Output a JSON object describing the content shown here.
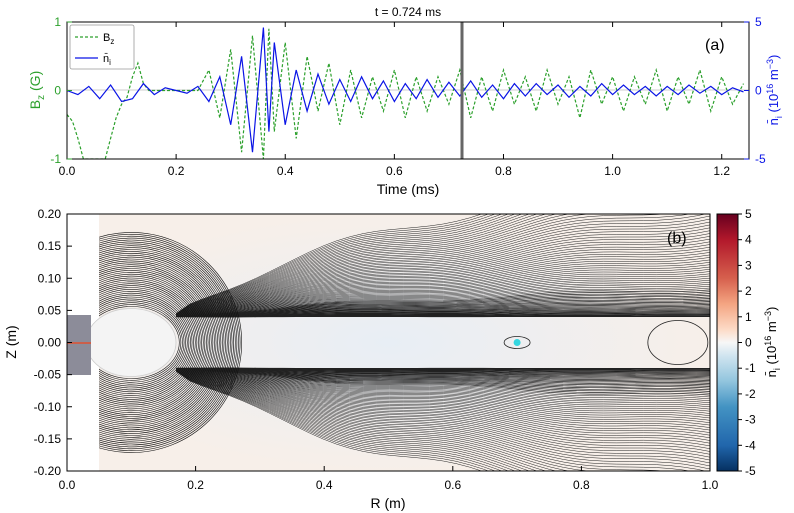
{
  "chart_data": [
    {
      "type": "line",
      "panel_label": "(a)",
      "title": "t = 0.724 ms",
      "xlabel": "Time (ms)",
      "xlim": [
        0.0,
        1.25
      ],
      "xticks": [
        "0.0",
        "0.2",
        "0.4",
        "0.6",
        "0.8",
        "1.0",
        "1.2"
      ],
      "ylabel_left": "B",
      "ylabel_left_sub": "z",
      "ylabel_left_unit": " (G)",
      "ylim_left": [
        -1,
        1
      ],
      "yticks_left": [
        "-1",
        "0",
        "1"
      ],
      "ylabel_right": "n̄",
      "ylabel_right_sub": "i",
      "ylabel_right_unit": " (10",
      "ylabel_right_exp": "16",
      "ylabel_right_unit2": " m",
      "ylabel_right_exp2": "−3",
      "ylabel_right_close": ")",
      "ylim_right": [
        -5,
        5
      ],
      "yticks_right": [
        "-5",
        "0",
        "5"
      ],
      "marker_time": 0.724,
      "series": [
        {
          "name": "B",
          "name_sub": "z",
          "color": "#2ca02c",
          "style": "dashed",
          "axis": "left",
          "x": [
            0.0,
            0.01,
            0.02,
            0.03,
            0.04,
            0.05,
            0.06,
            0.07,
            0.08,
            0.09,
            0.1,
            0.11,
            0.12,
            0.13,
            0.14,
            0.15,
            0.16,
            0.18,
            0.2,
            0.22,
            0.24,
            0.26,
            0.28,
            0.3,
            0.32,
            0.34,
            0.36,
            0.37,
            0.38,
            0.4,
            0.42,
            0.44,
            0.46,
            0.48,
            0.5,
            0.52,
            0.54,
            0.56,
            0.58,
            0.6,
            0.62,
            0.64,
            0.66,
            0.68,
            0.7,
            0.72,
            0.74,
            0.76,
            0.78,
            0.8,
            0.82,
            0.84,
            0.86,
            0.88,
            0.9,
            0.92,
            0.94,
            0.96,
            0.98,
            1.0,
            1.02,
            1.04,
            1.06,
            1.08,
            1.1,
            1.12,
            1.14,
            1.16,
            1.18,
            1.2,
            1.22,
            1.24
          ],
          "values": [
            -0.35,
            -0.45,
            -0.7,
            -1.0,
            -1.0,
            -1.0,
            -1.0,
            -1.0,
            -0.7,
            -0.4,
            -0.2,
            -0.1,
            0.2,
            0.4,
            0.1,
            0.0,
            0.0,
            0.0,
            0.0,
            0.0,
            0.0,
            0.3,
            -0.4,
            0.6,
            -0.9,
            0.8,
            -1.0,
            0.9,
            -0.6,
            0.7,
            -0.7,
            0.5,
            -0.3,
            0.4,
            -0.5,
            0.3,
            -0.4,
            0.2,
            -0.3,
            0.3,
            -0.4,
            0.2,
            -0.3,
            0.2,
            -0.2,
            0.3,
            -0.4,
            0.2,
            -0.3,
            0.3,
            -0.2,
            0.2,
            -0.3,
            0.3,
            -0.2,
            0.2,
            -0.4,
            0.3,
            -0.2,
            0.2,
            -0.3,
            0.2,
            -0.2,
            0.3,
            -0.3,
            0.2,
            -0.2,
            0.3,
            -0.3,
            0.2,
            -0.2,
            0.1
          ]
        },
        {
          "name": "n̄",
          "name_sub": "i",
          "color": "#0a14e6",
          "style": "solid",
          "axis": "right",
          "x": [
            0.0,
            0.02,
            0.04,
            0.06,
            0.08,
            0.1,
            0.12,
            0.14,
            0.16,
            0.18,
            0.2,
            0.22,
            0.24,
            0.26,
            0.28,
            0.3,
            0.32,
            0.34,
            0.36,
            0.37,
            0.38,
            0.4,
            0.42,
            0.44,
            0.46,
            0.48,
            0.5,
            0.52,
            0.54,
            0.56,
            0.58,
            0.6,
            0.62,
            0.64,
            0.66,
            0.68,
            0.7,
            0.72,
            0.74,
            0.76,
            0.78,
            0.8,
            0.82,
            0.84,
            0.86,
            0.88,
            0.9,
            0.92,
            0.94,
            0.96,
            0.98,
            1.0,
            1.02,
            1.04,
            1.06,
            1.08,
            1.1,
            1.12,
            1.14,
            1.16,
            1.18,
            1.2,
            1.22,
            1.24
          ],
          "values": [
            0.0,
            -0.3,
            0.3,
            -0.6,
            0.4,
            -0.8,
            -0.6,
            0.5,
            -0.3,
            0.2,
            0.0,
            -0.2,
            0.3,
            -0.8,
            1.0,
            -2.5,
            2.5,
            -4.5,
            4.6,
            -3.0,
            3.5,
            -2.5,
            1.5,
            -1.5,
            1.2,
            -1.0,
            0.8,
            -0.8,
            1.0,
            -0.6,
            0.7,
            -0.8,
            0.5,
            -0.6,
            0.8,
            -0.5,
            0.6,
            -0.4,
            0.7,
            -0.5,
            0.4,
            -0.6,
            0.5,
            -0.4,
            0.5,
            -0.3,
            0.4,
            -0.5,
            0.3,
            -0.4,
            0.5,
            -0.3,
            0.4,
            -0.3,
            0.3,
            -0.4,
            0.3,
            -0.3,
            0.4,
            -0.2,
            0.3,
            -0.3,
            0.2,
            -0.1
          ]
        }
      ]
    },
    {
      "type": "heatmap",
      "panel_label": "(b)",
      "xlabel": "R (m)",
      "ylabel": "Z (m)",
      "xlim": [
        0.0,
        1.0
      ],
      "ylim": [
        -0.2,
        0.2
      ],
      "xticks": [
        "0.0",
        "0.2",
        "0.4",
        "0.6",
        "0.8",
        "1.0"
      ],
      "yticks": [
        "0.20",
        "0.15",
        "0.10",
        "0.05",
        "0.00",
        "-0.05",
        "-0.10",
        "-0.15",
        "-0.20"
      ],
      "colorbar": {
        "label": "n̄",
        "label_sub": "i",
        "unit_open": "  (10",
        "unit_exp": "16",
        "unit_mid": " m",
        "unit_exp2": "−3",
        "unit_close": ")",
        "range": [
          -5,
          5
        ],
        "ticks": [
          "5",
          "4",
          "3",
          "2",
          "1",
          "0",
          "-1",
          "-2",
          "-3",
          "-4",
          "-5"
        ],
        "colors": [
          "#67001f",
          "#b2182b",
          "#d6604d",
          "#f4a582",
          "#fddbc7",
          "#f7f7f7",
          "#d1e5f0",
          "#92c5de",
          "#4393c3",
          "#2166ac",
          "#053061"
        ]
      },
      "probe_point": {
        "R": 0.7,
        "Z": 0.0,
        "color": "#33d6e0"
      },
      "central_body_radius_m": [
        0.17,
        0.04
      ]
    }
  ]
}
